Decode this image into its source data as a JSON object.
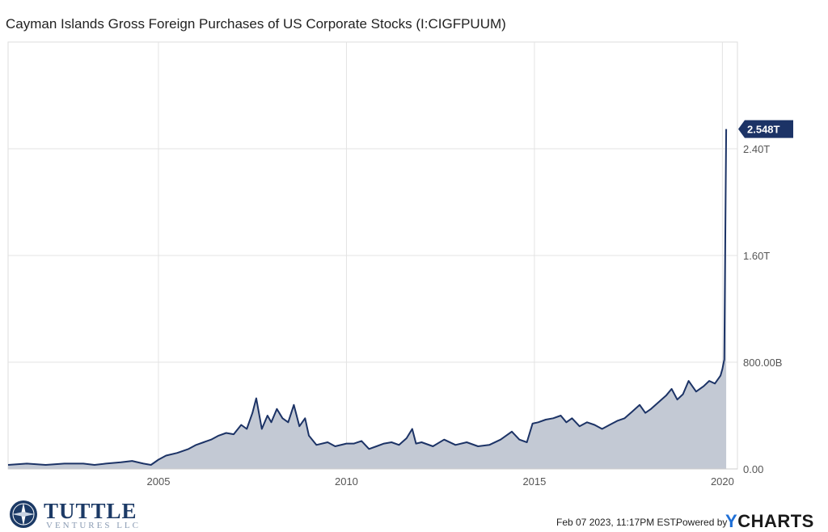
{
  "chart_data": {
    "type": "area",
    "title": "Cayman Islands Gross Foreign Purchases of US Corporate Stocks (I:CIGFPUUM)",
    "xlabel": "",
    "ylabel": "",
    "x_range": [
      2001.0,
      2020.4
    ],
    "ylim": [
      0,
      3.2
    ],
    "y_unit": "trillions USD",
    "x_ticks": [
      {
        "value": 2005,
        "label": "2005"
      },
      {
        "value": 2010,
        "label": "2010"
      },
      {
        "value": 2015,
        "label": "2015"
      },
      {
        "value": 2020,
        "label": "2020"
      }
    ],
    "y_ticks": [
      {
        "value": 0,
        "label": "0.00"
      },
      {
        "value": 0.8,
        "label": "800.00B"
      },
      {
        "value": 1.6,
        "label": "1.60T"
      },
      {
        "value": 2.4,
        "label": "2.40T"
      }
    ],
    "grid": true,
    "last_value": {
      "value": 2.548,
      "label": "2.548T"
    },
    "series_color": "#1c3366",
    "fill_color": "#c3c9d4",
    "series": [
      {
        "x": [
          2001.0,
          2001.5,
          2002.0,
          2002.5,
          2003.0,
          2003.3,
          2003.6,
          2004.0,
          2004.3,
          2004.6,
          2004.8,
          2005.0,
          2005.2,
          2005.5,
          2005.8,
          2006.0,
          2006.2,
          2006.4,
          2006.6,
          2006.8,
          2007.0,
          2007.2,
          2007.35,
          2007.5,
          2007.6,
          2007.75,
          2007.9,
          2008.0,
          2008.15,
          2008.3,
          2008.45,
          2008.6,
          2008.75,
          2008.9,
          2009.0,
          2009.2,
          2009.5,
          2009.7,
          2010.0,
          2010.2,
          2010.4,
          2010.6,
          2010.8,
          2011.0,
          2011.2,
          2011.4,
          2011.6,
          2011.75,
          2011.85,
          2012.0,
          2012.3,
          2012.6,
          2012.9,
          2013.2,
          2013.5,
          2013.8,
          2014.1,
          2014.4,
          2014.6,
          2014.8,
          2014.95,
          2015.1,
          2015.3,
          2015.5,
          2015.7,
          2015.85,
          2016.0,
          2016.2,
          2016.4,
          2016.6,
          2016.8,
          2017.0,
          2017.2,
          2017.4,
          2017.6,
          2017.8,
          2017.95,
          2018.1,
          2018.3,
          2018.5,
          2018.65,
          2018.8,
          2018.95,
          2019.1,
          2019.3,
          2019.5,
          2019.65,
          2019.8,
          2019.95,
          2020.0,
          2020.05,
          2020.1
        ],
        "y": [
          0.03,
          0.04,
          0.03,
          0.04,
          0.04,
          0.03,
          0.04,
          0.05,
          0.06,
          0.04,
          0.03,
          0.07,
          0.1,
          0.12,
          0.15,
          0.18,
          0.2,
          0.22,
          0.25,
          0.27,
          0.26,
          0.33,
          0.3,
          0.42,
          0.53,
          0.3,
          0.4,
          0.35,
          0.45,
          0.38,
          0.35,
          0.48,
          0.32,
          0.38,
          0.25,
          0.18,
          0.2,
          0.17,
          0.19,
          0.19,
          0.21,
          0.15,
          0.17,
          0.19,
          0.2,
          0.18,
          0.23,
          0.3,
          0.19,
          0.2,
          0.17,
          0.22,
          0.18,
          0.2,
          0.17,
          0.18,
          0.22,
          0.28,
          0.22,
          0.2,
          0.34,
          0.35,
          0.37,
          0.38,
          0.4,
          0.35,
          0.38,
          0.32,
          0.35,
          0.33,
          0.3,
          0.33,
          0.36,
          0.38,
          0.43,
          0.48,
          0.42,
          0.45,
          0.5,
          0.55,
          0.6,
          0.52,
          0.56,
          0.66,
          0.58,
          0.62,
          0.66,
          0.64,
          0.7,
          0.75,
          0.82,
          2.548
        ]
      }
    ]
  },
  "branding": {
    "logo_name": "TUTTLE",
    "logo_subtitle": "VENTURES LLC"
  },
  "footer": {
    "timestamp": "Feb 07 2023, 11:17PM EST.",
    "powered_by": "Powered by",
    "brand_y": "Y",
    "brand_rest": "CHARTS"
  }
}
